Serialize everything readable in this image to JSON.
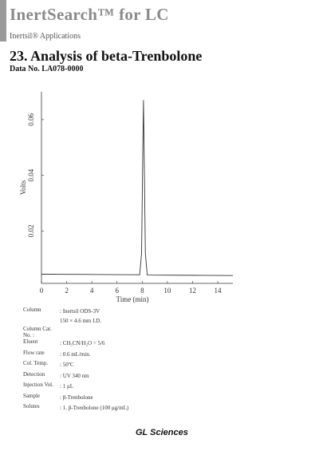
{
  "header": {
    "brand": "InertSearch™ for LC",
    "subtitle": "Inertsil® Applications",
    "title": "23. Analysis of beta-Trenbolone",
    "data_no": "Data No. LA078-0000"
  },
  "chart_data": {
    "type": "line",
    "x_label": "Time (min)",
    "y_label": "Volts",
    "x": [
      0,
      4,
      7.8,
      7.95,
      8.05,
      8.1,
      8.15,
      8.25,
      8.4,
      12,
      15.2
    ],
    "series": [
      {
        "name": "Volts",
        "color": "#333333",
        "values": [
          0.0045,
          0.0044,
          0.0043,
          0.012,
          0.05,
          0.067,
          0.05,
          0.012,
          0.0042,
          0.0041,
          0.004
        ]
      }
    ],
    "xlim": [
      0,
      15.2
    ],
    "ylim": [
      0.0012,
      0.07
    ],
    "xticks": [
      0,
      2,
      4,
      6,
      8,
      10,
      12,
      14
    ],
    "yticks": [
      0.02,
      0.04,
      0.06
    ]
  },
  "conditions": [
    {
      "label": "Column",
      "value": [
        ": Inertsil ODS-3V",
        "150 × 4.6 mm I.D."
      ]
    },
    {
      "label": "Column Cat. No. :",
      "value": []
    },
    {
      "label": "Eluent",
      "value": [
        ": CH₃CN/H₂O = 5/6"
      ]
    },
    {
      "label": "Flow rate",
      "value": [
        ": 0.6 mL/min."
      ]
    },
    {
      "label": "Col. Temp.",
      "value": [
        ": 50ºC"
      ]
    },
    {
      "label": "Detection",
      "value": [
        ": UV 340 nm"
      ]
    },
    {
      "label": "Injection Vol.",
      "value": [
        ": 1 μL"
      ]
    },
    {
      "label": "Sample",
      "value": [
        ": β-Trenbolone"
      ]
    },
    {
      "label": "Solutes",
      "value": [
        ": 1. β-Trenbolone (100 μg/mL)"
      ]
    }
  ],
  "footer": "GL Sciences"
}
